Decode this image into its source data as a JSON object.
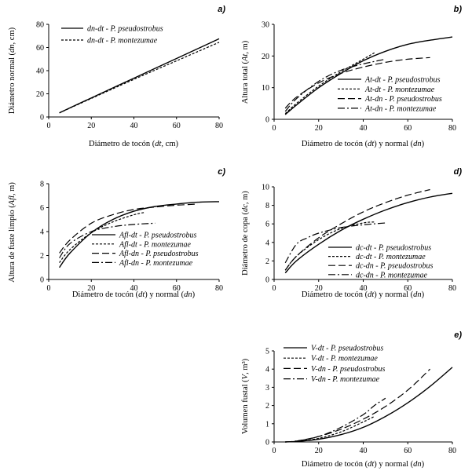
{
  "chart_data": [
    {
      "type": "line",
      "panel": "a)",
      "xlabel": "Diámetro de tocón (dt, cm)",
      "ylabel": "Diámetro normal (dn, cm)",
      "xlim": [
        0,
        80
      ],
      "ylim": [
        0,
        80
      ],
      "xticks": [
        0,
        20,
        40,
        60,
        80
      ],
      "yticks": [
        0,
        20,
        40,
        60,
        80
      ],
      "legend_position": "top-left",
      "series": [
        {
          "name": "dn-dt - P. pseudostrobus",
          "dash": "solid",
          "x": [
            5,
            20,
            40,
            60,
            80
          ],
          "y": [
            3.5,
            16.5,
            33.5,
            50.5,
            67.5
          ]
        },
        {
          "name": "dn-dt - P. montezumae",
          "dash": "dotted",
          "x": [
            5,
            20,
            40,
            60,
            80
          ],
          "y": [
            3.5,
            16.0,
            32.5,
            48.5,
            64.5
          ]
        }
      ]
    },
    {
      "type": "line",
      "panel": "b)",
      "xlabel": "Diámetro de tocón (dt) y normal (dn)",
      "ylabel": "Altura total (At, m)",
      "xlim": [
        0,
        80
      ],
      "ylim": [
        0,
        30
      ],
      "xticks": [
        0,
        20,
        40,
        60,
        80
      ],
      "yticks": [
        0,
        10,
        20,
        30
      ],
      "legend_position": "bottom-right",
      "series": [
        {
          "name": "At-dt - P. pseudostrobus",
          "dash": "solid",
          "x": [
            5,
            10,
            20,
            30,
            40,
            50,
            60,
            70,
            80
          ],
          "y": [
            1.5,
            4.5,
            10.0,
            14.5,
            18.5,
            21.5,
            23.7,
            25.0,
            26.0
          ]
        },
        {
          "name": "At-dt - P. montezumae",
          "dash": "dotted",
          "x": [
            5,
            10,
            20,
            30,
            40,
            45
          ],
          "y": [
            1.8,
            5.0,
            10.5,
            15.0,
            19.0,
            21.0
          ]
        },
        {
          "name": "At-dn - P. pseudostrobus",
          "dash": "dashed",
          "x": [
            5,
            10,
            20,
            30,
            40,
            50,
            60,
            70
          ],
          "y": [
            3.5,
            7.0,
            11.5,
            14.5,
            16.5,
            18.0,
            19.0,
            19.5
          ]
        },
        {
          "name": "At-dn - P. montezumae",
          "dash": "dashdot",
          "x": [
            5,
            10,
            20,
            30,
            40,
            50
          ],
          "y": [
            2.5,
            6.5,
            12.0,
            15.5,
            17.5,
            19.0
          ]
        }
      ]
    },
    {
      "type": "line",
      "panel": "c)",
      "xlabel": "Diámetro de tocón (dt) y normal (dn)",
      "ylabel": "Altura de fuste limpio (Afl, m)",
      "xlim": [
        0,
        80
      ],
      "ylim": [
        0,
        8
      ],
      "xticks": [
        0,
        20,
        40,
        60,
        80
      ],
      "yticks": [
        0,
        2,
        4,
        6,
        8
      ],
      "legend_position": "bottom-right",
      "series": [
        {
          "name": "Afl-dt - P. pseudostrobus",
          "dash": "solid",
          "x": [
            5,
            10,
            20,
            30,
            40,
            50,
            60,
            70,
            80
          ],
          "y": [
            1.0,
            2.2,
            3.9,
            5.0,
            5.7,
            6.1,
            6.3,
            6.45,
            6.5
          ]
        },
        {
          "name": "Afl-dt - P. montezumae",
          "dash": "dotted",
          "x": [
            5,
            10,
            20,
            30,
            40,
            45
          ],
          "y": [
            1.4,
            2.5,
            3.9,
            4.8,
            5.4,
            5.6
          ]
        },
        {
          "name": "Afl-dn - P. pseudostrobus",
          "dash": "dashed",
          "x": [
            5,
            10,
            20,
            30,
            40,
            50,
            60,
            70
          ],
          "y": [
            2.2,
            3.3,
            4.7,
            5.4,
            5.85,
            6.05,
            6.2,
            6.3
          ]
        },
        {
          "name": "Afl-dn - P. montezumae",
          "dash": "dashdot",
          "x": [
            5,
            10,
            20,
            30,
            40,
            50
          ],
          "y": [
            1.8,
            3.0,
            4.0,
            4.4,
            4.6,
            4.7
          ]
        }
      ]
    },
    {
      "type": "line",
      "panel": "d)",
      "xlabel": "Diámetro de tocón (dt) y normal (dn)",
      "ylabel": "Diámetro de copa (dc, m)",
      "xlim": [
        0,
        80
      ],
      "ylim": [
        0,
        10
      ],
      "xticks": [
        0,
        20,
        40,
        60,
        80
      ],
      "yticks": [
        0,
        2,
        4,
        6,
        8,
        10
      ],
      "legend_position": "bottom-right",
      "series": [
        {
          "name": "dc-dt - P. pseudostrobus",
          "dash": "solid",
          "x": [
            5,
            10,
            20,
            30,
            40,
            50,
            60,
            70,
            80
          ],
          "y": [
            0.7,
            2.0,
            3.8,
            5.3,
            6.5,
            7.5,
            8.3,
            8.9,
            9.3
          ]
        },
        {
          "name": "dc-dt - P. montezumae",
          "dash": "dotted",
          "x": [
            5,
            10,
            20,
            30,
            40,
            45
          ],
          "y": [
            1.0,
            2.5,
            4.3,
            5.5,
            6.1,
            6.2
          ]
        },
        {
          "name": "dc-dn - P. pseudostrobus",
          "dash": "dashed",
          "x": [
            5,
            10,
            20,
            30,
            40,
            50,
            60,
            70
          ],
          "y": [
            1.0,
            2.5,
            4.5,
            6.0,
            7.3,
            8.3,
            9.1,
            9.7
          ]
        },
        {
          "name": "dc-dn - P. montezumae",
          "dash": "dashdot",
          "x": [
            5,
            10,
            15,
            20,
            30,
            40,
            50
          ],
          "y": [
            1.8,
            3.8,
            4.5,
            5.0,
            5.6,
            5.9,
            6.1
          ]
        }
      ]
    },
    {
      "type": "line",
      "panel": "e)",
      "xlabel": "Diámetro de tocón (dt) y normal (dn)",
      "ylabel": "Volumen fustal (V, m³)",
      "xlim": [
        0,
        80
      ],
      "ylim": [
        0,
        5
      ],
      "xticks": [
        0,
        20,
        40,
        60,
        80
      ],
      "yticks": [
        0,
        1,
        2,
        3,
        4,
        5
      ],
      "legend_position": "top-left",
      "series": [
        {
          "name": "V-dt - P. pseudostrobus",
          "dash": "solid",
          "x": [
            5,
            10,
            20,
            30,
            40,
            50,
            60,
            70,
            80
          ],
          "y": [
            0.0,
            0.03,
            0.15,
            0.4,
            0.8,
            1.4,
            2.15,
            3.05,
            4.1
          ]
        },
        {
          "name": "V-dt - P. montezumae",
          "dash": "dotted",
          "x": [
            5,
            10,
            20,
            30,
            40,
            45
          ],
          "y": [
            0.0,
            0.03,
            0.2,
            0.55,
            1.1,
            1.4
          ]
        },
        {
          "name": "V-dn - P. pseudostrobus",
          "dash": "dashed",
          "x": [
            5,
            10,
            20,
            30,
            40,
            50,
            60,
            70
          ],
          "y": [
            0.0,
            0.05,
            0.3,
            0.7,
            1.25,
            1.95,
            2.85,
            4.0
          ]
        },
        {
          "name": "V-dn - P. montezumae",
          "dash": "dashdot",
          "x": [
            5,
            10,
            20,
            30,
            40,
            45,
            50
          ],
          "y": [
            0.0,
            0.05,
            0.3,
            0.8,
            1.5,
            2.0,
            2.4
          ]
        }
      ]
    }
  ]
}
